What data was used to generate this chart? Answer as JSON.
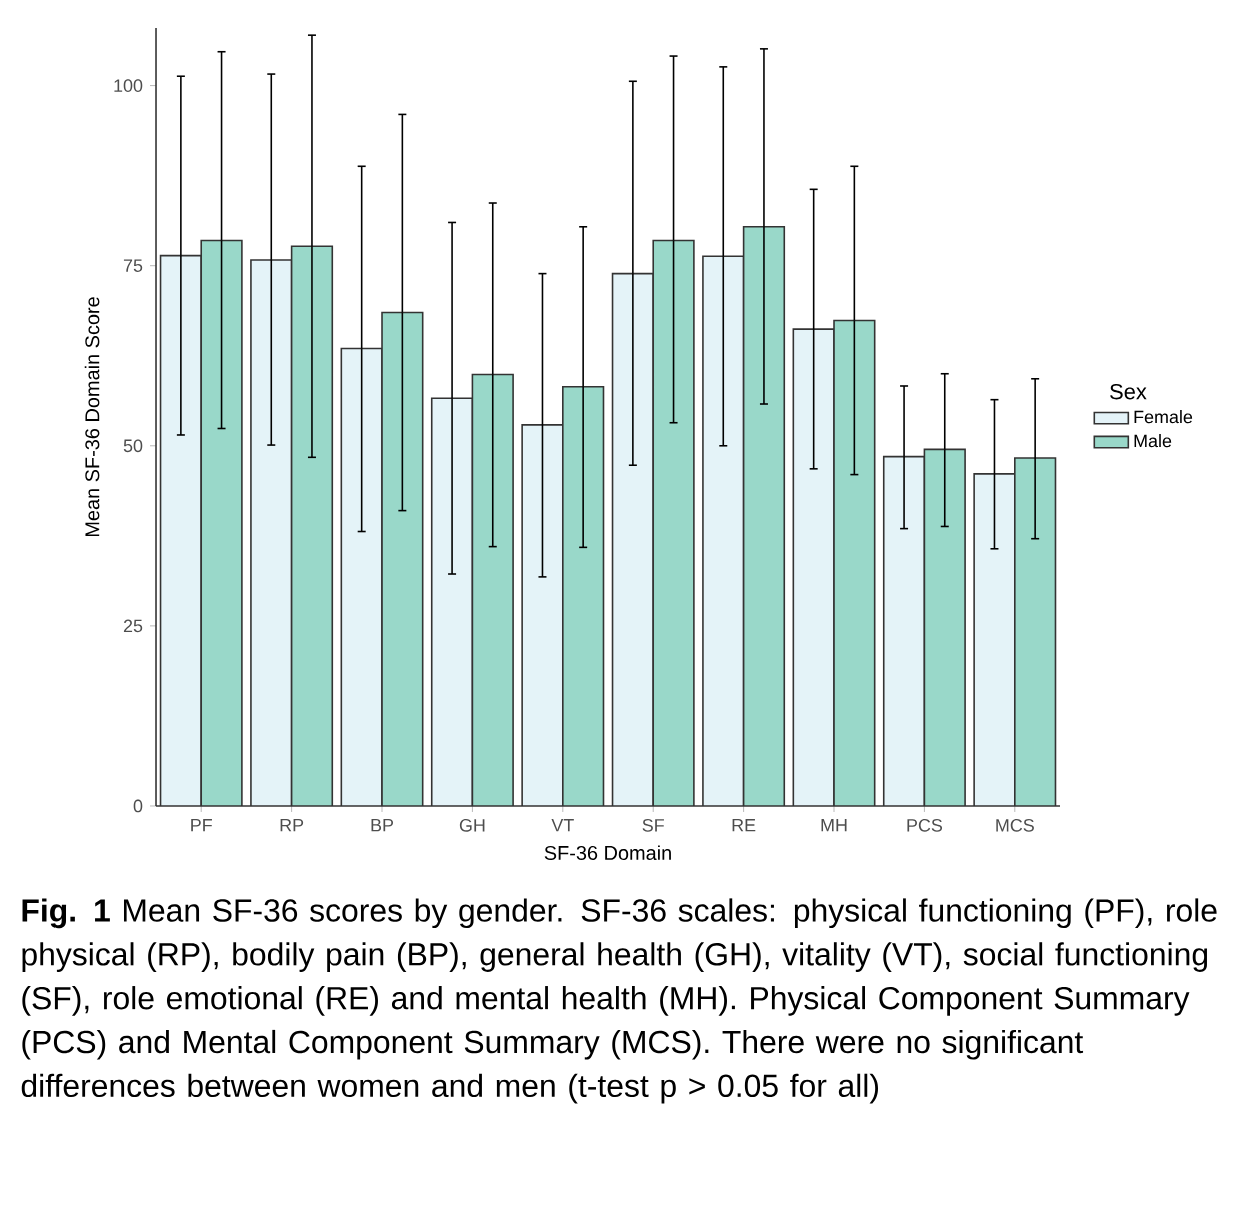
{
  "chart_data": {
    "type": "bar",
    "categories": [
      "PF",
      "RP",
      "BP",
      "GH",
      "VT",
      "SF",
      "RE",
      "MH",
      "PCS",
      "MCS"
    ],
    "series": [
      {
        "name": "Female",
        "color": "#e4f3f8",
        "values": [
          76.4,
          75.8,
          63.5,
          56.6,
          52.9,
          73.9,
          76.3,
          66.2,
          48.5,
          46.1
        ],
        "errors": [
          [
            51.5,
            101.3
          ],
          [
            50.1,
            101.6
          ],
          [
            38.1,
            88.8
          ],
          [
            32.2,
            81.0
          ],
          [
            31.8,
            73.9
          ],
          [
            47.3,
            100.6
          ],
          [
            50.0,
            102.6
          ],
          [
            46.8,
            85.6
          ],
          [
            38.5,
            58.3
          ],
          [
            35.7,
            56.4
          ]
        ]
      },
      {
        "name": "Male",
        "color": "#99d8c9",
        "values": [
          78.5,
          77.7,
          68.5,
          59.9,
          58.2,
          78.5,
          80.4,
          67.4,
          49.5,
          48.3
        ],
        "errors": [
          [
            52.4,
            104.7
          ],
          [
            48.4,
            107.0
          ],
          [
            41.0,
            96.0
          ],
          [
            36.0,
            83.7
          ],
          [
            35.9,
            80.4
          ],
          [
            53.2,
            104.1
          ],
          [
            55.8,
            105.1
          ],
          [
            46.0,
            88.8
          ],
          [
            38.8,
            60.0
          ],
          [
            37.1,
            59.3
          ]
        ]
      }
    ],
    "xlabel": "SF-36 Domain",
    "ylabel": "Mean SF-36 Domain Score",
    "legend_title": "Sex",
    "ylim": [
      0,
      108
    ],
    "yticks": [
      0,
      25,
      50,
      75,
      100
    ],
    "grid": false,
    "legend": "right",
    "annotations": [
      "**Fig. 1** Mean SF-36 scores by gender. SF-36 scales: physical functioning (PF), role physical (RP), bodily pain (BP), general health (GH), vitality (VT), social functioning (SF), role emotional (RE) and mental health (MH). Physical Component Summary (PCS) and Mental Component Summary (MCS). There were no significant differences between women and men (t-test p > 0.05 for all)"
    ]
  }
}
